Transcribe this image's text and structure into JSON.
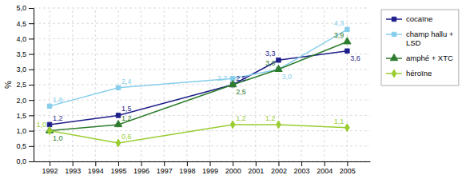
{
  "chart_data": {
    "type": "line",
    "y_label": "%",
    "x": [
      1992,
      1995,
      2000,
      2002,
      2005
    ],
    "series": [
      {
        "name": "cocaïne",
        "color": "#1F1F8B",
        "marker": "square",
        "values": [
          1.2,
          1.5,
          2.5,
          3.3,
          3.6
        ],
        "value_labels": [
          "1,2",
          "1,5",
          "2,5",
          "3,3",
          "3,6"
        ]
      },
      {
        "name": "champ hallu +\nLSD",
        "color": "#87CEEB",
        "marker": "square",
        "values": [
          1.8,
          2.4,
          2.7,
          3.0,
          4.3
        ],
        "value_labels": [
          "1,8",
          "2,4",
          "2,7",
          "3,0",
          "4,3"
        ]
      },
      {
        "name": "amphé + XTC",
        "color": "#2E7D2E",
        "marker": "triangle",
        "values": [
          1.0,
          1.2,
          2.5,
          3.0,
          3.9
        ],
        "value_labels": [
          "1,0",
          "1,2",
          "2,5",
          "3,0",
          "3,9"
        ]
      },
      {
        "name": "héroïne",
        "color": "#9ACD32",
        "marker": "diamond",
        "values": [
          1.0,
          0.6,
          1.2,
          1.2,
          1.1
        ],
        "value_labels": [
          "1,0",
          "0,6",
          "1,2",
          "1,2",
          "1,1"
        ]
      }
    ],
    "xlim": [
      1991.3,
      2006.0
    ],
    "xticks": [
      1992,
      1993,
      1994,
      1995,
      1996,
      1997,
      1998,
      1999,
      2000,
      2001,
      2002,
      2003,
      2004,
      2005
    ],
    "ylim": [
      0.0,
      5.0
    ],
    "yticks": [
      {
        "value": 0.0,
        "label": "0,0"
      },
      {
        "value": 0.5,
        "label": "0,5"
      },
      {
        "value": 1.0,
        "label": "1,0"
      },
      {
        "value": 1.5,
        "label": "1,5"
      },
      {
        "value": 2.0,
        "label": "2,0"
      },
      {
        "value": 2.5,
        "label": "2,5"
      },
      {
        "value": 3.0,
        "label": "3,0"
      },
      {
        "value": 3.5,
        "label": "3,5"
      },
      {
        "value": 4.0,
        "label": "4,0"
      },
      {
        "value": 4.5,
        "label": "4,5"
      },
      {
        "value": 5.0,
        "label": "5,0"
      }
    ],
    "grid": true,
    "legend": "right",
    "data_labels": true
  }
}
